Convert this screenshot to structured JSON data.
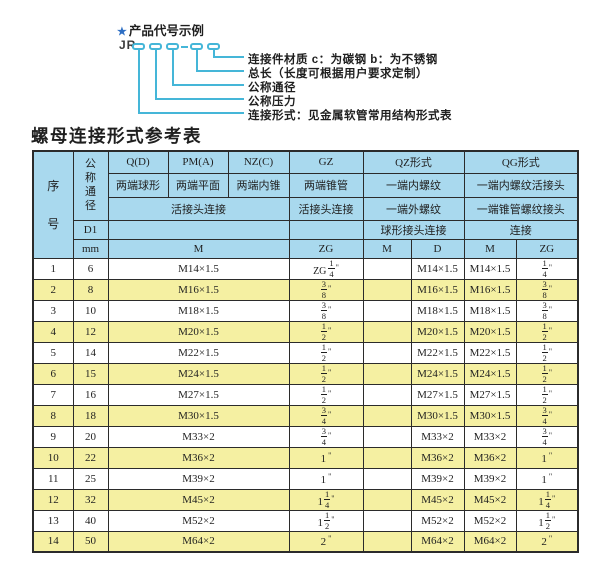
{
  "diagram": {
    "star_icon": "★",
    "heading": "产品代号示例",
    "code_prefix": "JR",
    "code_separator": "—",
    "labels": [
      "连接件材质  c：为碳钢  b：为不锈钢",
      "总长（长度可根据用户要求定制）",
      "公称通径",
      "公称压力",
      "连接形式：见金属软管常用结构形式表"
    ]
  },
  "table_title": "螺母连接形式参考表",
  "table": {
    "header": {
      "seq": "序号",
      "seq_chars": [
        "序",
        "号"
      ],
      "diameter": "公称通径",
      "d1": "D1",
      "mm": "mm",
      "q1": "Q(D)",
      "pm1": "PM(A)",
      "nz1": "NZ(C)",
      "gz1": "GZ",
      "qz1": "QZ形式",
      "qg1": "QG形式",
      "q2": "两端球形",
      "pm2": "两端平面",
      "nz2": "两端内锥",
      "gz2": "两端锥管",
      "qz2": "一端内螺纹",
      "qg2": "一端内螺纹活接头",
      "q3": "活接头连接",
      "gz3": "活接头连接",
      "qz3": "一端外螺纹",
      "qg3": "一端锥管螺纹接头",
      "qz4": "球形接头连接",
      "qg4": "连接",
      "m_main": "M",
      "zg_gz": "ZG",
      "m_qz": "M",
      "d_qz": "D",
      "m_qg": "M",
      "zg_qg": "ZG"
    },
    "rows": [
      {
        "no": "1",
        "mm": "6",
        "m": "M14×1.5",
        "zg_gz": {
          "prefix": "ZG",
          "num": "1",
          "den": "4"
        },
        "m_qz": "",
        "d_qz": "M14×1.5",
        "m_qg": "M14×1.5",
        "zg_qg": {
          "num": "1",
          "den": "4"
        }
      },
      {
        "no": "2",
        "mm": "8",
        "m": "M16×1.5",
        "zg_gz": {
          "num": "3",
          "den": "8"
        },
        "m_qz": "",
        "d_qz": "M16×1.5",
        "m_qg": "M16×1.5",
        "zg_qg": {
          "num": "3",
          "den": "8"
        }
      },
      {
        "no": "3",
        "mm": "10",
        "m": "M18×1.5",
        "zg_gz": {
          "num": "3",
          "den": "8"
        },
        "m_qz": "",
        "d_qz": "M18×1.5",
        "m_qg": "M18×1.5",
        "zg_qg": {
          "num": "3",
          "den": "8"
        }
      },
      {
        "no": "4",
        "mm": "12",
        "m": "M20×1.5",
        "zg_gz": {
          "num": "1",
          "den": "2"
        },
        "m_qz": "",
        "d_qz": "M20×1.5",
        "m_qg": "M20×1.5",
        "zg_qg": {
          "num": "1",
          "den": "2"
        }
      },
      {
        "no": "5",
        "mm": "14",
        "m": "M22×1.5",
        "zg_gz": {
          "num": "1",
          "den": "2"
        },
        "m_qz": "",
        "d_qz": "M22×1.5",
        "m_qg": "M22×1.5",
        "zg_qg": {
          "num": "1",
          "den": "2"
        }
      },
      {
        "no": "6",
        "mm": "15",
        "m": "M24×1.5",
        "zg_gz": {
          "num": "1",
          "den": "2"
        },
        "m_qz": "",
        "d_qz": "M24×1.5",
        "m_qg": "M24×1.5",
        "zg_qg": {
          "num": "1",
          "den": "2"
        }
      },
      {
        "no": "7",
        "mm": "16",
        "m": "M27×1.5",
        "zg_gz": {
          "num": "1",
          "den": "2"
        },
        "m_qz": "",
        "d_qz": "M27×1.5",
        "m_qg": "M27×1.5",
        "zg_qg": {
          "num": "1",
          "den": "2"
        }
      },
      {
        "no": "8",
        "mm": "18",
        "m": "M30×1.5",
        "zg_gz": {
          "num": "3",
          "den": "4"
        },
        "m_qz": "",
        "d_qz": "M30×1.5",
        "m_qg": "M30×1.5",
        "zg_qg": {
          "num": "3",
          "den": "4"
        }
      },
      {
        "no": "9",
        "mm": "20",
        "m": "M33×2",
        "zg_gz": {
          "num": "3",
          "den": "4"
        },
        "m_qz": "",
        "d_qz": "M33×2",
        "m_qg": "M33×2",
        "zg_qg": {
          "num": "3",
          "den": "4"
        }
      },
      {
        "no": "10",
        "mm": "22",
        "m": "M36×2",
        "zg_gz": {
          "whole": "1"
        },
        "m_qz": "",
        "d_qz": "M36×2",
        "m_qg": "M36×2",
        "zg_qg": {
          "whole": "1"
        }
      },
      {
        "no": "11",
        "mm": "25",
        "m": "M39×2",
        "zg_gz": {
          "whole": "1"
        },
        "m_qz": "",
        "d_qz": "M39×2",
        "m_qg": "M39×2",
        "zg_qg": {
          "whole": "1"
        }
      },
      {
        "no": "12",
        "mm": "32",
        "m": "M45×2",
        "zg_gz": {
          "whole": "1",
          "num": "1",
          "den": "4"
        },
        "m_qz": "",
        "d_qz": "M45×2",
        "m_qg": "M45×2",
        "zg_qg": {
          "whole": "1",
          "num": "1",
          "den": "4"
        }
      },
      {
        "no": "13",
        "mm": "40",
        "m": "M52×2",
        "zg_gz": {
          "whole": "1",
          "num": "1",
          "den": "2"
        },
        "m_qz": "",
        "d_qz": "M52×2",
        "m_qg": "M52×2",
        "zg_qg": {
          "whole": "1",
          "num": "1",
          "den": "2"
        }
      },
      {
        "no": "14",
        "mm": "50",
        "m": "M64×2",
        "zg_gz": {
          "whole": "2"
        },
        "m_qz": "",
        "d_qz": "M64×2",
        "m_qg": "M64×2",
        "zg_qg": {
          "whole": "2"
        }
      }
    ]
  },
  "colors": {
    "header_bg": "#a9d9ee",
    "row_alt_bg": "#f5f0a2",
    "row_bg": "#ffffff",
    "border": "#2b2b2b",
    "diagram_line": "#45b6d8",
    "star_blue": "#2e6fc4",
    "text": "#1f1f1f"
  }
}
